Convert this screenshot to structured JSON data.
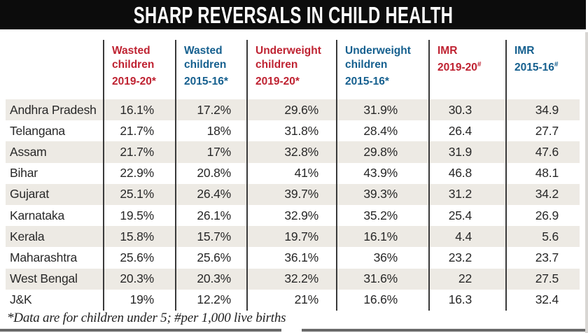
{
  "title": "SHARP REVERSALS IN CHILD HEALTH",
  "footnote": "*Data are for children under 5; #per 1,000 live births",
  "colors": {
    "accent_red": "#bf2332",
    "accent_blue": "#16608f",
    "stripe": "#edeae4",
    "title_bg": "#0c0c0c"
  },
  "table": {
    "columns": [
      {
        "lines": [
          "Wasted",
          "children",
          "2019-20*"
        ],
        "sup": "",
        "color": "#bf2332"
      },
      {
        "lines": [
          "Wasted",
          "children",
          "2015-16*"
        ],
        "sup": "",
        "color": "#16608f"
      },
      {
        "lines": [
          "Underweight",
          "children",
          "2019-20*"
        ],
        "sup": "",
        "color": "#bf2332"
      },
      {
        "lines": [
          "Underweight",
          "children",
          "2015-16*"
        ],
        "sup": "",
        "color": "#16608f"
      },
      {
        "lines": [
          "IMR",
          "2019-20"
        ],
        "sup": "#",
        "color": "#bf2332"
      },
      {
        "lines": [
          "IMR",
          "2015-16"
        ],
        "sup": "#",
        "color": "#16608f"
      }
    ],
    "rows": [
      {
        "state": "Andhra Pradesh",
        "values": [
          "16.1%",
          "17.2%",
          "29.6%",
          "31.9%",
          "30.3",
          "34.9"
        ]
      },
      {
        "state": "Telangana",
        "values": [
          "21.7%",
          "18%",
          "31.8%",
          "28.4%",
          "26.4",
          "27.7"
        ]
      },
      {
        "state": "Assam",
        "values": [
          "21.7%",
          "17%",
          "32.8%",
          "29.8%",
          "31.9",
          "47.6"
        ]
      },
      {
        "state": "Bihar",
        "values": [
          "22.9%",
          "20.8%",
          "41%",
          "43.9%",
          "46.8",
          "48.1"
        ]
      },
      {
        "state": "Gujarat",
        "values": [
          "25.1%",
          "26.4%",
          "39.7%",
          "39.3%",
          "31.2",
          "34.2"
        ]
      },
      {
        "state": "Karnataka",
        "values": [
          "19.5%",
          "26.1%",
          "32.9%",
          "35.2%",
          "25.4",
          "26.9"
        ]
      },
      {
        "state": "Kerala",
        "values": [
          "15.8%",
          "15.7%",
          "19.7%",
          "16.1%",
          "4.4",
          "5.6"
        ]
      },
      {
        "state": "Maharashtra",
        "values": [
          "25.6%",
          "25.6%",
          "36.1%",
          "36%",
          "23.2",
          "23.7"
        ]
      },
      {
        "state": "West Bengal",
        "values": [
          "20.3%",
          "20.3%",
          "32.2%",
          "31.6%",
          "22",
          "27.5"
        ]
      },
      {
        "state": "J&K",
        "values": [
          "19%",
          "12.2%",
          "21%",
          "16.6%",
          "16.3",
          "32.4"
        ]
      }
    ]
  },
  "chart_data": {
    "type": "table",
    "title": "SHARP REVERSALS IN CHILD HEALTH",
    "categories": [
      "Andhra Pradesh",
      "Telangana",
      "Assam",
      "Bihar",
      "Gujarat",
      "Karnataka",
      "Kerala",
      "Maharashtra",
      "West Bengal",
      "J&K"
    ],
    "series": [
      {
        "name": "Wasted children 2019-20*",
        "unit": "%",
        "values": [
          16.1,
          21.7,
          21.7,
          22.9,
          25.1,
          19.5,
          15.8,
          25.6,
          20.3,
          19
        ]
      },
      {
        "name": "Wasted children 2015-16*",
        "unit": "%",
        "values": [
          17.2,
          18,
          17,
          20.8,
          26.4,
          26.1,
          15.7,
          25.6,
          20.3,
          12.2
        ]
      },
      {
        "name": "Underweight children 2019-20*",
        "unit": "%",
        "values": [
          29.6,
          31.8,
          32.8,
          41,
          39.7,
          32.9,
          19.7,
          36.1,
          32.2,
          21
        ]
      },
      {
        "name": "Underweight children 2015-16*",
        "unit": "%",
        "values": [
          31.9,
          28.4,
          29.8,
          43.9,
          39.3,
          35.2,
          16.1,
          36,
          31.6,
          16.6
        ]
      },
      {
        "name": "IMR 2019-20#",
        "unit": "per 1,000 live births",
        "values": [
          30.3,
          26.4,
          31.9,
          46.8,
          31.2,
          25.4,
          4.4,
          23.2,
          22,
          16.3
        ]
      },
      {
        "name": "IMR 2015-16#",
        "unit": "per 1,000 live births",
        "values": [
          34.9,
          27.7,
          47.6,
          48.1,
          34.2,
          26.9,
          5.6,
          23.7,
          27.5,
          32.4
        ]
      }
    ],
    "footnote": "*Data are for children under 5; #per 1,000 live births"
  }
}
